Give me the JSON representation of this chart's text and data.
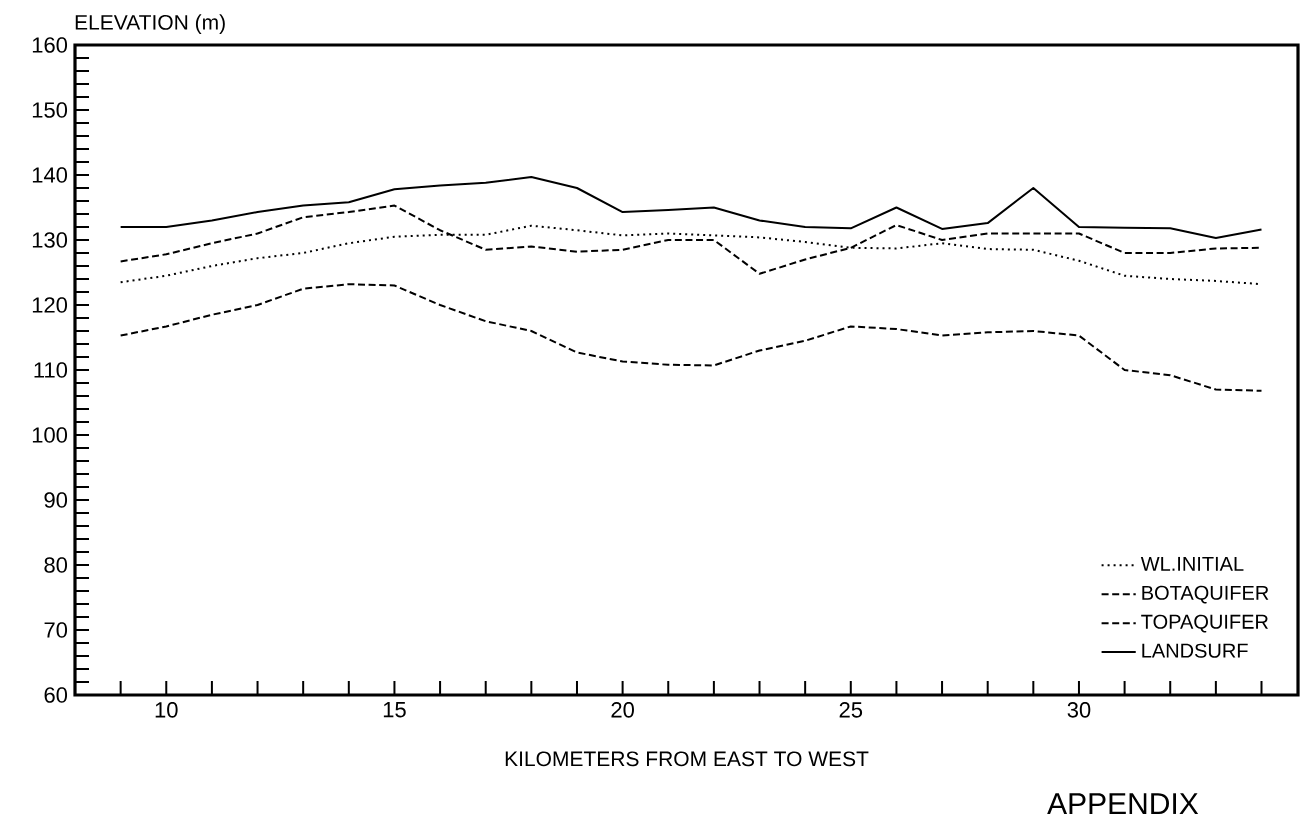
{
  "chart_data": {
    "type": "line",
    "xlabel": "KILOMETERS FROM EAST TO WEST",
    "ylabel": "ELEVATION (m)",
    "annotations": [
      "APPENDIX"
    ],
    "x": [
      9,
      10,
      11,
      12,
      13,
      14,
      15,
      16,
      17,
      18,
      19,
      20,
      21,
      22,
      23,
      24,
      25,
      26,
      27,
      28,
      29,
      30,
      31,
      32,
      33,
      34
    ],
    "series": [
      {
        "name": "WL.INITIAL",
        "color": "#000000",
        "line_style": "dotted",
        "values": [
          123.5,
          124.5,
          126,
          127.2,
          128,
          129.5,
          130.5,
          130.8,
          130.8,
          132.2,
          131.5,
          130.7,
          131,
          130.7,
          130.4,
          129.7,
          128.8,
          128.7,
          129.5,
          128.6,
          128.5,
          126.8,
          124.5,
          124,
          123.7,
          123.2
        ]
      },
      {
        "name": "BOTAQUIFER",
        "color": "#000000",
        "line_style": "dashed",
        "values": [
          115.3,
          116.7,
          118.5,
          120,
          122.5,
          123.2,
          123,
          120,
          117.5,
          116,
          112.7,
          111.3,
          110.8,
          110.7,
          113,
          114.5,
          116.7,
          116.3,
          115.3,
          115.8,
          116,
          115.3,
          110,
          109.2,
          107,
          106.8
        ]
      },
      {
        "name": "TOPAQUIFER",
        "color": "#000000",
        "line_style": "dashed",
        "values": [
          126.7,
          127.8,
          129.5,
          131,
          133.5,
          134.3,
          135.3,
          131.5,
          128.5,
          129,
          128.2,
          128.5,
          130,
          130,
          124.8,
          127,
          128.8,
          132.3,
          130,
          131,
          131,
          131,
          128,
          128,
          128.7,
          128.8
        ]
      },
      {
        "name": "LANDSURF",
        "color": "#000000",
        "line_style": "solid",
        "values": [
          132,
          132,
          133,
          134.3,
          135.3,
          135.8,
          137.8,
          138.4,
          138.8,
          139.7,
          138,
          134.3,
          134.6,
          135,
          133,
          132,
          131.8,
          135,
          131.7,
          132.6,
          138,
          132,
          131.9,
          131.8,
          130.3,
          131.6
        ]
      }
    ],
    "xlim": [
      8,
      34.8
    ],
    "ylim": [
      60,
      160
    ],
    "xticks": [
      {
        "value": 9,
        "label": null
      },
      10,
      {
        "value": 11,
        "label": null
      },
      {
        "value": 12,
        "label": null
      },
      {
        "value": 13,
        "label": null
      },
      {
        "value": 14,
        "label": null
      },
      15,
      {
        "value": 16,
        "label": null
      },
      {
        "value": 17,
        "label": null
      },
      {
        "value": 18,
        "label": null
      },
      {
        "value": 19,
        "label": null
      },
      20,
      {
        "value": 21,
        "label": null
      },
      {
        "value": 22,
        "label": null
      },
      {
        "value": 23,
        "label": null
      },
      {
        "value": 24,
        "label": null
      },
      25,
      {
        "value": 26,
        "label": null
      },
      {
        "value": 27,
        "label": null
      },
      {
        "value": 28,
        "label": null
      },
      {
        "value": 29,
        "label": null
      },
      30,
      {
        "value": 31,
        "label": null
      },
      {
        "value": 32,
        "label": null
      },
      {
        "value": 33,
        "label": null
      },
      {
        "value": 34,
        "label": null
      }
    ],
    "yticks": [
      60,
      {
        "value": 62,
        "label": null
      },
      {
        "value": 64,
        "label": null
      },
      {
        "value": 66,
        "label": null
      },
      {
        "value": 68,
        "label": null
      },
      70,
      {
        "value": 72,
        "label": null
      },
      {
        "value": 74,
        "label": null
      },
      {
        "value": 76,
        "label": null
      },
      {
        "value": 78,
        "label": null
      },
      80,
      {
        "value": 82,
        "label": null
      },
      {
        "value": 84,
        "label": null
      },
      {
        "value": 86,
        "label": null
      },
      {
        "value": 88,
        "label": null
      },
      90,
      {
        "value": 92,
        "label": null
      },
      {
        "value": 94,
        "label": null
      },
      {
        "value": 96,
        "label": null
      },
      {
        "value": 98,
        "label": null
      },
      100,
      {
        "value": 102,
        "label": null
      },
      {
        "value": 104,
        "label": null
      },
      {
        "value": 106,
        "label": null
      },
      {
        "value": 108,
        "label": null
      },
      110,
      {
        "value": 112,
        "label": null
      },
      {
        "value": 114,
        "label": null
      },
      {
        "value": 116,
        "label": null
      },
      {
        "value": 118,
        "label": null
      },
      120,
      {
        "value": 122,
        "label": null
      },
      {
        "value": 124,
        "label": null
      },
      {
        "value": 126,
        "label": null
      },
      {
        "value": 128,
        "label": null
      },
      130,
      {
        "value": 132,
        "label": null
      },
      {
        "value": 134,
        "label": null
      },
      {
        "value": 136,
        "label": null
      },
      {
        "value": 138,
        "label": null
      },
      140,
      {
        "value": 142,
        "label": null
      },
      {
        "value": 144,
        "label": null
      },
      {
        "value": 146,
        "label": null
      },
      {
        "value": 148,
        "label": null
      },
      150,
      {
        "value": 152,
        "label": null
      },
      {
        "value": 154,
        "label": null
      },
      {
        "value": 156,
        "label": null
      },
      {
        "value": 158,
        "label": null
      },
      160
    ],
    "grid": false,
    "legend": "bottom right"
  }
}
